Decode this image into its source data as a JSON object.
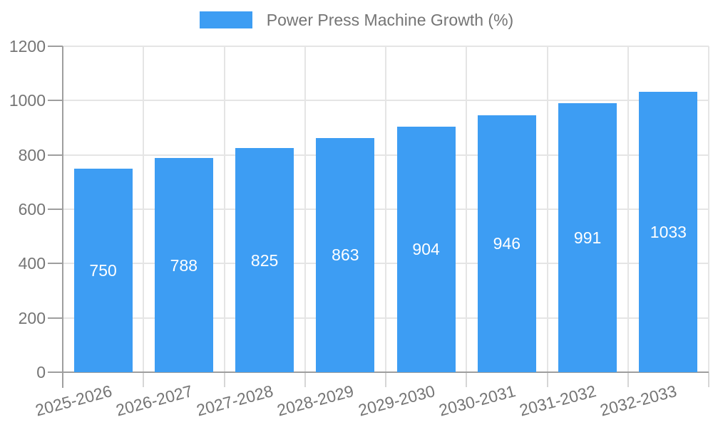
{
  "legend": {
    "label": "Power Press Machine Growth (%)"
  },
  "chart_data": {
    "type": "bar",
    "title": "Power Press Machine Growth (%)",
    "categories": [
      "2025-2026",
      "2026-2027",
      "2027-2028",
      "2028-2029",
      "2029-2030",
      "2030-2031",
      "2031-2032",
      "2032-2033"
    ],
    "values": [
      750,
      788,
      825,
      863,
      904,
      946,
      991,
      1033
    ],
    "series_name": "Power Press Machine Growth (%)",
    "xlabel": "",
    "ylabel": "",
    "ylim": [
      0,
      1200
    ],
    "y_ticks": [
      0,
      200,
      400,
      600,
      800,
      1000,
      1200
    ],
    "grid": true,
    "legend_position": "top-center",
    "data_labels": "white, centered inside bars",
    "x_tick_rotation_deg": -15
  },
  "colors": {
    "bar": "#3d9df3",
    "axis_text": "#757575",
    "axis_line": "#9e9e9e",
    "gridline": "#e5e5e5",
    "x_tick_line": "#d6d6d6",
    "value_label": "#ffffff",
    "background": "#ffffff"
  }
}
